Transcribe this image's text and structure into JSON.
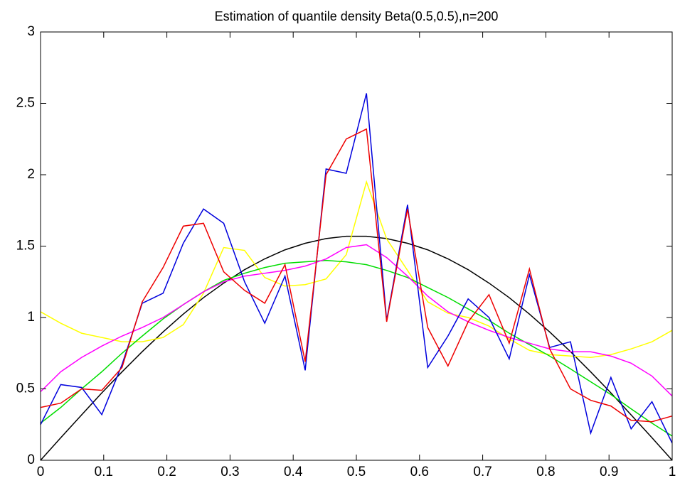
{
  "chart_data": {
    "type": "line",
    "title": "Estimation of quantile density Beta(0.5,0.5),n=200",
    "x": [
      0,
      0.032,
      0.065,
      0.097,
      0.129,
      0.161,
      0.194,
      0.226,
      0.258,
      0.29,
      0.323,
      0.355,
      0.387,
      0.419,
      0.452,
      0.484,
      0.516,
      0.548,
      0.581,
      0.613,
      0.645,
      0.677,
      0.71,
      0.742,
      0.774,
      0.806,
      0.839,
      0.871,
      0.903,
      0.935,
      0.968,
      1
    ],
    "series": [
      {
        "color": "#000000",
        "values": [
          0,
          0.158,
          0.318,
          0.472,
          0.619,
          0.761,
          0.899,
          1.024,
          1.139,
          1.241,
          1.335,
          1.411,
          1.474,
          1.52,
          1.553,
          1.569,
          1.569,
          1.553,
          1.52,
          1.474,
          1.411,
          1.335,
          1.241,
          1.139,
          1.024,
          0.899,
          0.761,
          0.619,
          0.472,
          0.318,
          0.158,
          0
        ]
      },
      {
        "color": "#ffff00",
        "values": [
          1.04,
          0.96,
          0.89,
          0.86,
          0.83,
          0.83,
          0.86,
          0.95,
          1.17,
          1.49,
          1.47,
          1.28,
          1.22,
          1.23,
          1.27,
          1.44,
          1.95,
          1.55,
          1.33,
          1.11,
          1.03,
          1.0,
          0.94,
          0.85,
          0.77,
          0.74,
          0.73,
          0.72,
          0.74,
          0.78,
          0.83,
          0.91
        ]
      },
      {
        "color": "#00dd00",
        "values": [
          0.26,
          0.37,
          0.5,
          0.62,
          0.75,
          0.87,
          0.99,
          1.09,
          1.18,
          1.26,
          1.31,
          1.35,
          1.38,
          1.39,
          1.4,
          1.39,
          1.37,
          1.33,
          1.28,
          1.21,
          1.14,
          1.06,
          0.98,
          0.89,
          0.81,
          0.73,
          0.64,
          0.55,
          0.46,
          0.36,
          0.26,
          0.17
        ]
      },
      {
        "color": "#ff00ff",
        "values": [
          0.48,
          0.62,
          0.72,
          0.8,
          0.87,
          0.93,
          1.0,
          1.09,
          1.18,
          1.25,
          1.29,
          1.31,
          1.33,
          1.36,
          1.41,
          1.49,
          1.51,
          1.42,
          1.29,
          1.15,
          1.04,
          0.97,
          0.91,
          0.86,
          0.82,
          0.78,
          0.76,
          0.76,
          0.73,
          0.68,
          0.59,
          0.45
        ]
      },
      {
        "color": "#0000dd",
        "values": [
          0.25,
          0.53,
          0.51,
          0.32,
          0.67,
          1.1,
          1.17,
          1.52,
          1.76,
          1.66,
          1.25,
          0.96,
          1.29,
          0.63,
          2.04,
          2.01,
          2.57,
          0.98,
          1.79,
          0.65,
          0.87,
          1.13,
          1.0,
          0.71,
          1.3,
          0.79,
          0.83,
          0.19,
          0.58,
          0.22,
          0.41,
          0.12
        ]
      },
      {
        "color": "#ee0000",
        "values": [
          0.37,
          0.4,
          0.5,
          0.49,
          0.65,
          1.11,
          1.35,
          1.64,
          1.66,
          1.32,
          1.19,
          1.1,
          1.37,
          0.69,
          2.0,
          2.25,
          2.32,
          0.97,
          1.76,
          0.93,
          0.66,
          0.97,
          1.16,
          0.82,
          1.34,
          0.78,
          0.5,
          0.42,
          0.38,
          0.28,
          0.27,
          0.31
        ]
      }
    ],
    "xlim": [
      0,
      1
    ],
    "xticks": [
      0,
      0.1,
      0.2,
      0.3,
      0.4,
      0.5,
      0.6,
      0.7,
      0.8,
      0.9,
      1
    ],
    "ylim": [
      0,
      3
    ],
    "yticks": [
      0,
      0.5,
      1,
      1.5,
      2,
      2.5,
      3
    ]
  }
}
